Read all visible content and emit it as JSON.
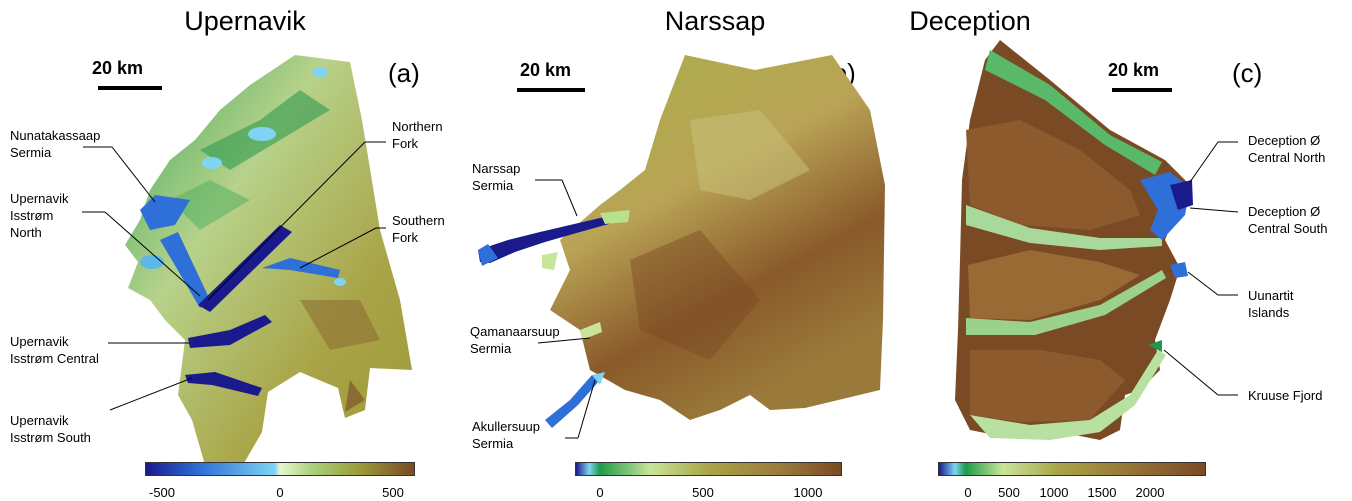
{
  "panels": {
    "a": {
      "title": "Upernavik",
      "letter": "(a)",
      "scale": "20 km",
      "labels": {
        "nunatakassaap": [
          "Nunatakassaap",
          "Sermia"
        ],
        "isstrom_north": [
          "Upernavik",
          "Isstrøm",
          "North"
        ],
        "isstrom_central": [
          "Upernavik",
          "Isstrøm Central"
        ],
        "isstrom_south": [
          "Upernavik",
          "Isstrøm South"
        ],
        "northern_fork": [
          "Northern",
          "Fork"
        ],
        "southern_fork": [
          "Southern",
          "Fork"
        ]
      },
      "colorbar_ticks": [
        "-500",
        "0",
        "500"
      ]
    },
    "b": {
      "title": "Narssap",
      "letter": "(b)",
      "scale": "20 km",
      "labels": {
        "narssap": [
          "Narssap",
          "Sermia"
        ],
        "qamanaarsuup": [
          "Qamanaarsuup",
          "Sermia"
        ],
        "akullersuup": [
          "Akullersuup",
          "Sermia"
        ]
      },
      "colorbar_ticks": [
        "0",
        "500",
        "1000"
      ]
    },
    "c": {
      "title": "Deception",
      "letter": "(c)",
      "scale": "20 km",
      "labels": {
        "central_north": [
          "Deception Ø",
          "Central North"
        ],
        "central_south": [
          "Deception Ø",
          "Central South"
        ],
        "uunartit": [
          "Uunartit",
          "Islands"
        ],
        "kruuse": [
          "Kruuse Fjord"
        ]
      },
      "colorbar_ticks": [
        "0",
        "500",
        "1000",
        "1500",
        "2000"
      ]
    }
  },
  "colors": {
    "deep_blue": "#1a1a8c",
    "blue": "#2e6fd8",
    "light_blue": "#7fd4f2",
    "green": "#1e9a4a",
    "light_green": "#c9e59a",
    "olive": "#9a9a3a",
    "brown": "#7a4a24",
    "tan": "#b99a55"
  }
}
